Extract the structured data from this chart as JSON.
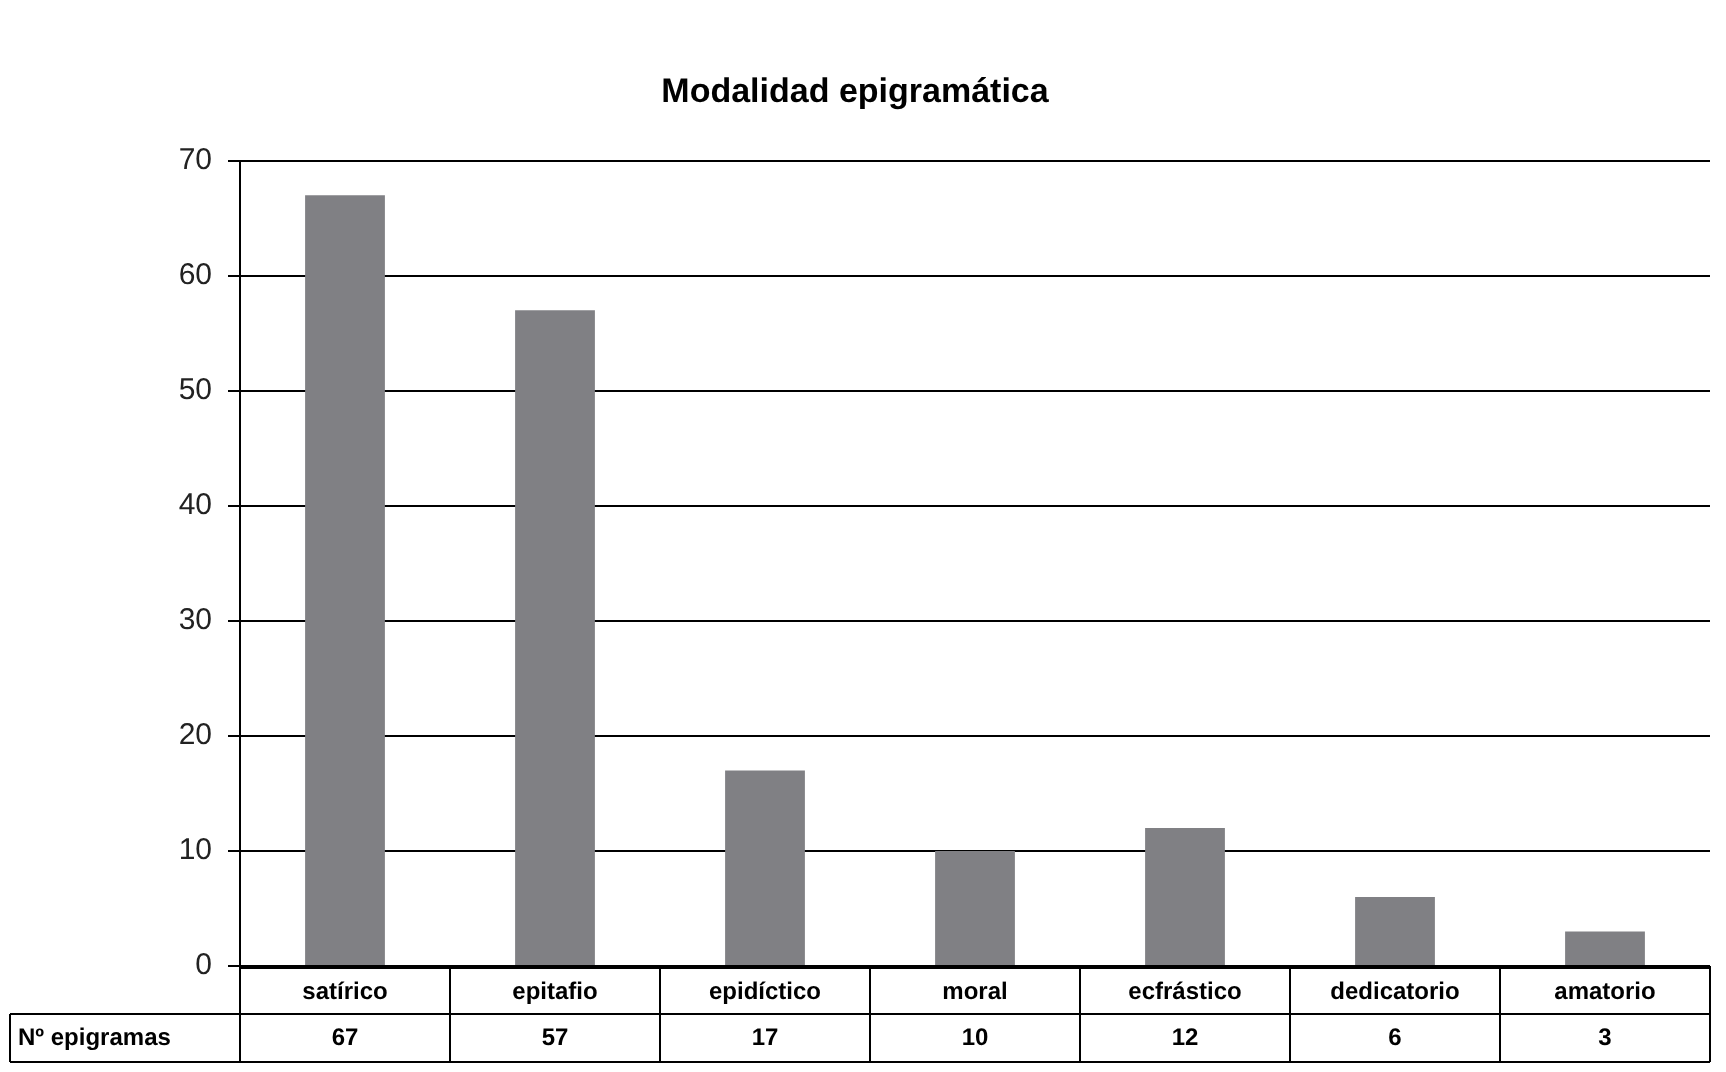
{
  "chart_data": {
    "type": "bar",
    "title": "Modalidad epigramática",
    "categories": [
      "satírico",
      "epitafio",
      "epidíctico",
      "moral",
      "ecfrástico",
      "dedicatorio",
      "amatorio"
    ],
    "series": [
      {
        "name": "Nº epigramas",
        "color": "#808084",
        "values": [
          67,
          57,
          17,
          10,
          12,
          6,
          3
        ]
      }
    ],
    "ylim": [
      0,
      70
    ],
    "yticks": [
      0,
      10,
      20,
      30,
      40,
      50,
      60,
      70
    ],
    "grid": "y",
    "legend": false,
    "data_labels": true
  }
}
